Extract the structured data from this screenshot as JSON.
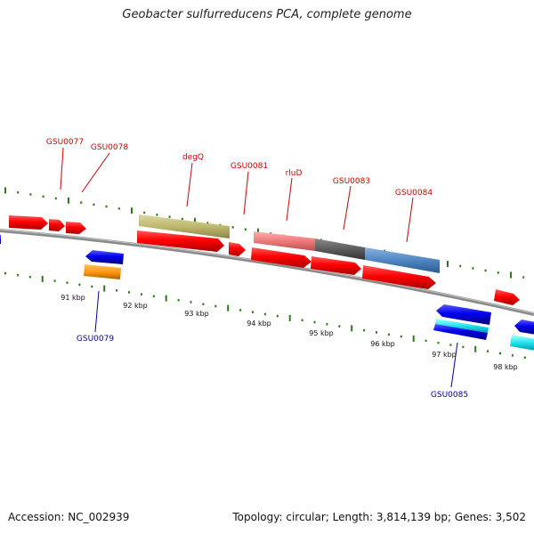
{
  "title": "Geobacter sulfurreducens PCA, complete genome",
  "footer": {
    "accession": "Accession: NC_002939",
    "summary": "Topology: circular; Length: 3,814,139 bp; Genes: 3,502"
  },
  "colors": {
    "forward_label": "#cc0000",
    "reverse_label": "#000099",
    "tick": "#2a7a1a",
    "backbone": "#888888"
  },
  "kbp_labels": [
    "91 kbp",
    "92 kbp",
    "93 kbp",
    "94 kbp",
    "95 kbp",
    "96 kbp",
    "97 kbp",
    "98 kbp"
  ],
  "gene_labels": [
    {
      "id": "gsu0077",
      "text": "GSU0077",
      "strand": "forward"
    },
    {
      "id": "gsu0078",
      "text": "GSU0078",
      "strand": "forward"
    },
    {
      "id": "degq",
      "text": "degQ",
      "strand": "forward"
    },
    {
      "id": "gsu0081",
      "text": "GSU0081",
      "strand": "forward"
    },
    {
      "id": "rlud",
      "text": "rluD",
      "strand": "forward"
    },
    {
      "id": "gsu0083",
      "text": "GSU0083",
      "strand": "forward"
    },
    {
      "id": "gsu0084",
      "text": "GSU0084",
      "strand": "forward"
    },
    {
      "id": "gsu0079",
      "text": "GSU0079",
      "strand": "reverse"
    },
    {
      "id": "gsu0085",
      "text": "GSU0085",
      "strand": "reverse"
    }
  ]
}
